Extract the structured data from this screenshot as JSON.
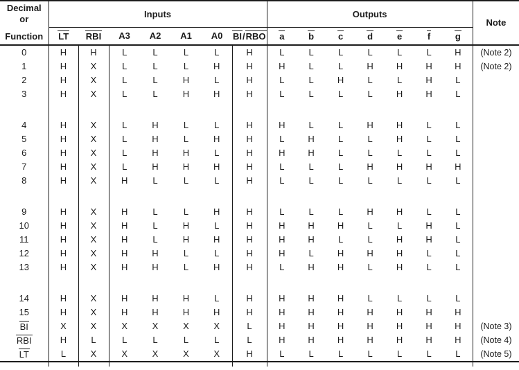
{
  "table": {
    "corner_header_lines": [
      "Decimal",
      "or",
      "Function"
    ],
    "inputs_group_label": "Inputs",
    "outputs_group_label": "Outputs",
    "note_header_label": "Note",
    "text_color": "#1c1c1c",
    "input_headers": [
      [
        [
          "LT",
          true
        ]
      ],
      [
        [
          "RBI",
          true
        ]
      ],
      [
        [
          "A3",
          false
        ]
      ],
      [
        [
          "A2",
          false
        ]
      ],
      [
        [
          "A1",
          false
        ]
      ],
      [
        [
          "A0",
          false
        ]
      ],
      [
        [
          "BI",
          true
        ],
        [
          "/",
          false
        ],
        [
          "RBO",
          true
        ]
      ]
    ],
    "output_headers": [
      [
        [
          "a",
          true
        ]
      ],
      [
        [
          "b",
          true
        ]
      ],
      [
        [
          "c",
          true
        ]
      ],
      [
        [
          "d",
          true
        ]
      ],
      [
        [
          "e",
          true
        ]
      ],
      [
        [
          "f",
          true
        ]
      ],
      [
        [
          "g",
          true
        ]
      ]
    ],
    "sections": [
      [
        {
          "label": [
            [
              "0",
              false
            ]
          ],
          "inputs": [
            "H",
            "H",
            "L",
            "L",
            "L",
            "L",
            "H"
          ],
          "outputs": [
            "L",
            "L",
            "L",
            "L",
            "L",
            "L",
            "H"
          ],
          "note": "(Note 2)"
        },
        {
          "label": [
            [
              "1",
              false
            ]
          ],
          "inputs": [
            "H",
            "X",
            "L",
            "L",
            "L",
            "H",
            "H"
          ],
          "outputs": [
            "H",
            "L",
            "L",
            "H",
            "H",
            "H",
            "H"
          ],
          "note": "(Note 2)"
        },
        {
          "label": [
            [
              "2",
              false
            ]
          ],
          "inputs": [
            "H",
            "X",
            "L",
            "L",
            "H",
            "L",
            "H"
          ],
          "outputs": [
            "L",
            "L",
            "H",
            "L",
            "L",
            "H",
            "L"
          ],
          "note": ""
        },
        {
          "label": [
            [
              "3",
              false
            ]
          ],
          "inputs": [
            "H",
            "X",
            "L",
            "L",
            "H",
            "H",
            "H"
          ],
          "outputs": [
            "L",
            "L",
            "L",
            "L",
            "H",
            "H",
            "L"
          ],
          "note": ""
        }
      ],
      [
        {
          "label": [
            [
              "4",
              false
            ]
          ],
          "inputs": [
            "H",
            "X",
            "L",
            "H",
            "L",
            "L",
            "H"
          ],
          "outputs": [
            "H",
            "L",
            "L",
            "H",
            "H",
            "L",
            "L"
          ],
          "note": ""
        },
        {
          "label": [
            [
              "5",
              false
            ]
          ],
          "inputs": [
            "H",
            "X",
            "L",
            "H",
            "L",
            "H",
            "H"
          ],
          "outputs": [
            "L",
            "H",
            "L",
            "L",
            "H",
            "L",
            "L"
          ],
          "note": ""
        },
        {
          "label": [
            [
              "6",
              false
            ]
          ],
          "inputs": [
            "H",
            "X",
            "L",
            "H",
            "H",
            "L",
            "H"
          ],
          "outputs": [
            "H",
            "H",
            "L",
            "L",
            "L",
            "L",
            "L"
          ],
          "note": ""
        },
        {
          "label": [
            [
              "7",
              false
            ]
          ],
          "inputs": [
            "H",
            "X",
            "L",
            "H",
            "H",
            "H",
            "H"
          ],
          "outputs": [
            "L",
            "L",
            "L",
            "H",
            "H",
            "H",
            "H"
          ],
          "note": ""
        },
        {
          "label": [
            [
              "8",
              false
            ]
          ],
          "inputs": [
            "H",
            "X",
            "H",
            "L",
            "L",
            "L",
            "H"
          ],
          "outputs": [
            "L",
            "L",
            "L",
            "L",
            "L",
            "L",
            "L"
          ],
          "note": ""
        }
      ],
      [
        {
          "label": [
            [
              "9",
              false
            ]
          ],
          "inputs": [
            "H",
            "X",
            "H",
            "L",
            "L",
            "H",
            "H"
          ],
          "outputs": [
            "L",
            "L",
            "L",
            "H",
            "H",
            "L",
            "L"
          ],
          "note": ""
        },
        {
          "label": [
            [
              "10",
              false
            ]
          ],
          "inputs": [
            "H",
            "X",
            "H",
            "L",
            "H",
            "L",
            "H"
          ],
          "outputs": [
            "H",
            "H",
            "H",
            "L",
            "L",
            "H",
            "L"
          ],
          "note": ""
        },
        {
          "label": [
            [
              "11",
              false
            ]
          ],
          "inputs": [
            "H",
            "X",
            "H",
            "L",
            "H",
            "H",
            "H"
          ],
          "outputs": [
            "H",
            "H",
            "L",
            "L",
            "H",
            "H",
            "L"
          ],
          "note": ""
        },
        {
          "label": [
            [
              "12",
              false
            ]
          ],
          "inputs": [
            "H",
            "X",
            "H",
            "H",
            "L",
            "L",
            "H"
          ],
          "outputs": [
            "H",
            "L",
            "H",
            "H",
            "H",
            "L",
            "L"
          ],
          "note": ""
        },
        {
          "label": [
            [
              "13",
              false
            ]
          ],
          "inputs": [
            "H",
            "X",
            "H",
            "H",
            "L",
            "H",
            "H"
          ],
          "outputs": [
            "L",
            "H",
            "H",
            "L",
            "H",
            "L",
            "L"
          ],
          "note": ""
        }
      ],
      [
        {
          "label": [
            [
              "14",
              false
            ]
          ],
          "inputs": [
            "H",
            "X",
            "H",
            "H",
            "H",
            "L",
            "H"
          ],
          "outputs": [
            "H",
            "H",
            "H",
            "L",
            "L",
            "L",
            "L"
          ],
          "note": ""
        },
        {
          "label": [
            [
              "15",
              false
            ]
          ],
          "inputs": [
            "H",
            "X",
            "H",
            "H",
            "H",
            "H",
            "H"
          ],
          "outputs": [
            "H",
            "H",
            "H",
            "H",
            "H",
            "H",
            "H"
          ],
          "note": ""
        },
        {
          "label": [
            [
              "BI",
              true
            ]
          ],
          "inputs": [
            "X",
            "X",
            "X",
            "X",
            "X",
            "X",
            "L"
          ],
          "outputs": [
            "H",
            "H",
            "H",
            "H",
            "H",
            "H",
            "H"
          ],
          "note": "(Note 3)"
        },
        {
          "label": [
            [
              "RBI",
              true
            ]
          ],
          "inputs": [
            "H",
            "L",
            "L",
            "L",
            "L",
            "L",
            "L"
          ],
          "outputs": [
            "H",
            "H",
            "H",
            "H",
            "H",
            "H",
            "H"
          ],
          "note": "(Note 4)"
        },
        {
          "label": [
            [
              "LT",
              true
            ]
          ],
          "inputs": [
            "L",
            "X",
            "X",
            "X",
            "X",
            "X",
            "H"
          ],
          "outputs": [
            "L",
            "L",
            "L",
            "L",
            "L",
            "L",
            "L"
          ],
          "note": "(Note 5)"
        }
      ]
    ]
  }
}
